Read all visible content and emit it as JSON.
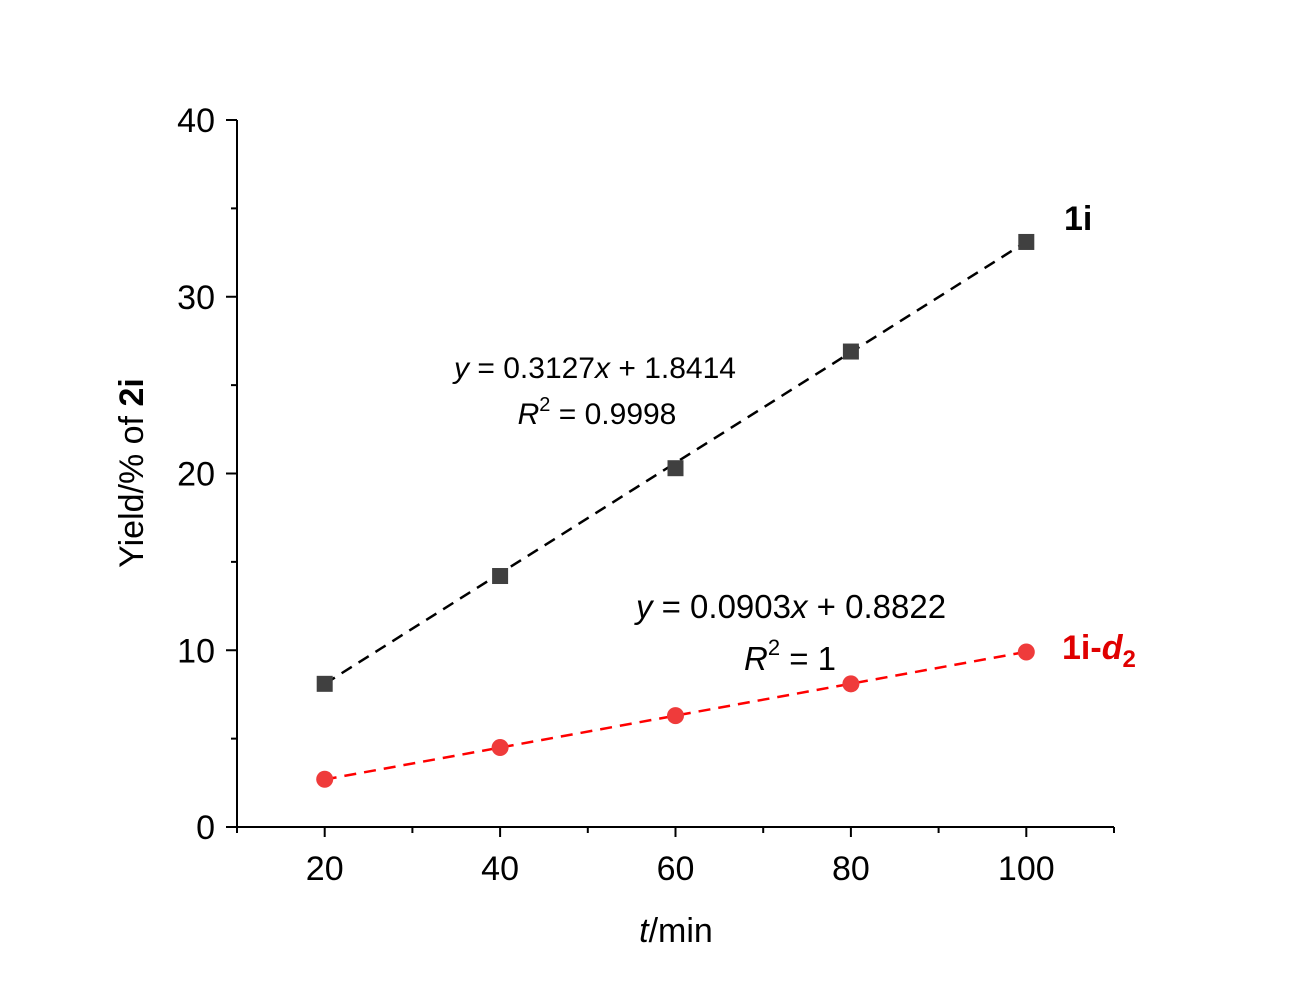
{
  "chart_data": {
    "type": "scatter",
    "title": "",
    "xlabel": "t/min",
    "xlabel_italic": "t",
    "xlabel_rest": "/min",
    "ylabel_prefix": "Yield/% of ",
    "ylabel_bold": "2i",
    "xlim": [
      10,
      110
    ],
    "ylim": [
      0,
      40
    ],
    "x_ticks": [
      20,
      40,
      60,
      80,
      100
    ],
    "x_tick_labels": [
      "20",
      "40",
      "60",
      "80",
      "100"
    ],
    "x_minor_ticks": [
      10,
      30,
      50,
      70,
      90,
      110
    ],
    "y_ticks": [
      0,
      10,
      20,
      30,
      40
    ],
    "y_tick_labels": [
      "0",
      "10",
      "20",
      "30",
      "40"
    ],
    "y_minor_ticks": [
      5,
      15,
      25,
      35
    ],
    "grid": false,
    "legend": "none",
    "series": [
      {
        "name": "1i",
        "label_main": "1i",
        "label_sub": "",
        "marker": "square",
        "color": "#404040",
        "label_color": "#000000",
        "line_color": "#000000",
        "x": [
          20,
          40,
          60,
          80,
          100
        ],
        "y": [
          8.1,
          14.2,
          20.3,
          26.9,
          33.1
        ],
        "fit": {
          "slope": 0.3127,
          "intercept": 1.8414,
          "x_range": [
            20,
            100
          ]
        },
        "equation": {
          "y_var": "y",
          "mid": " = 0.3127",
          "x_var": "x",
          "end": " + 1.8414"
        },
        "r2": {
          "r": "R",
          "sup": "2",
          "value": " = 0.9998"
        }
      },
      {
        "name": "1i-d2",
        "label_main": "1i-",
        "label_italic": "d",
        "label_sub": "2",
        "marker": "circle",
        "color": "#ef3b3b",
        "label_color": "#e00000",
        "line_color": "#ff0000",
        "x": [
          20,
          40,
          60,
          80,
          100
        ],
        "y": [
          2.7,
          4.5,
          6.3,
          8.1,
          9.9
        ],
        "fit": {
          "slope": 0.0903,
          "intercept": 0.8822,
          "x_range": [
            20,
            100
          ]
        },
        "equation": {
          "y_var": "y",
          "mid": " = 0.0903",
          "x_var": "x",
          "end": " + 0.8822"
        },
        "r2": {
          "r": "R",
          "sup": "2",
          "value": " = 1"
        }
      }
    ]
  }
}
